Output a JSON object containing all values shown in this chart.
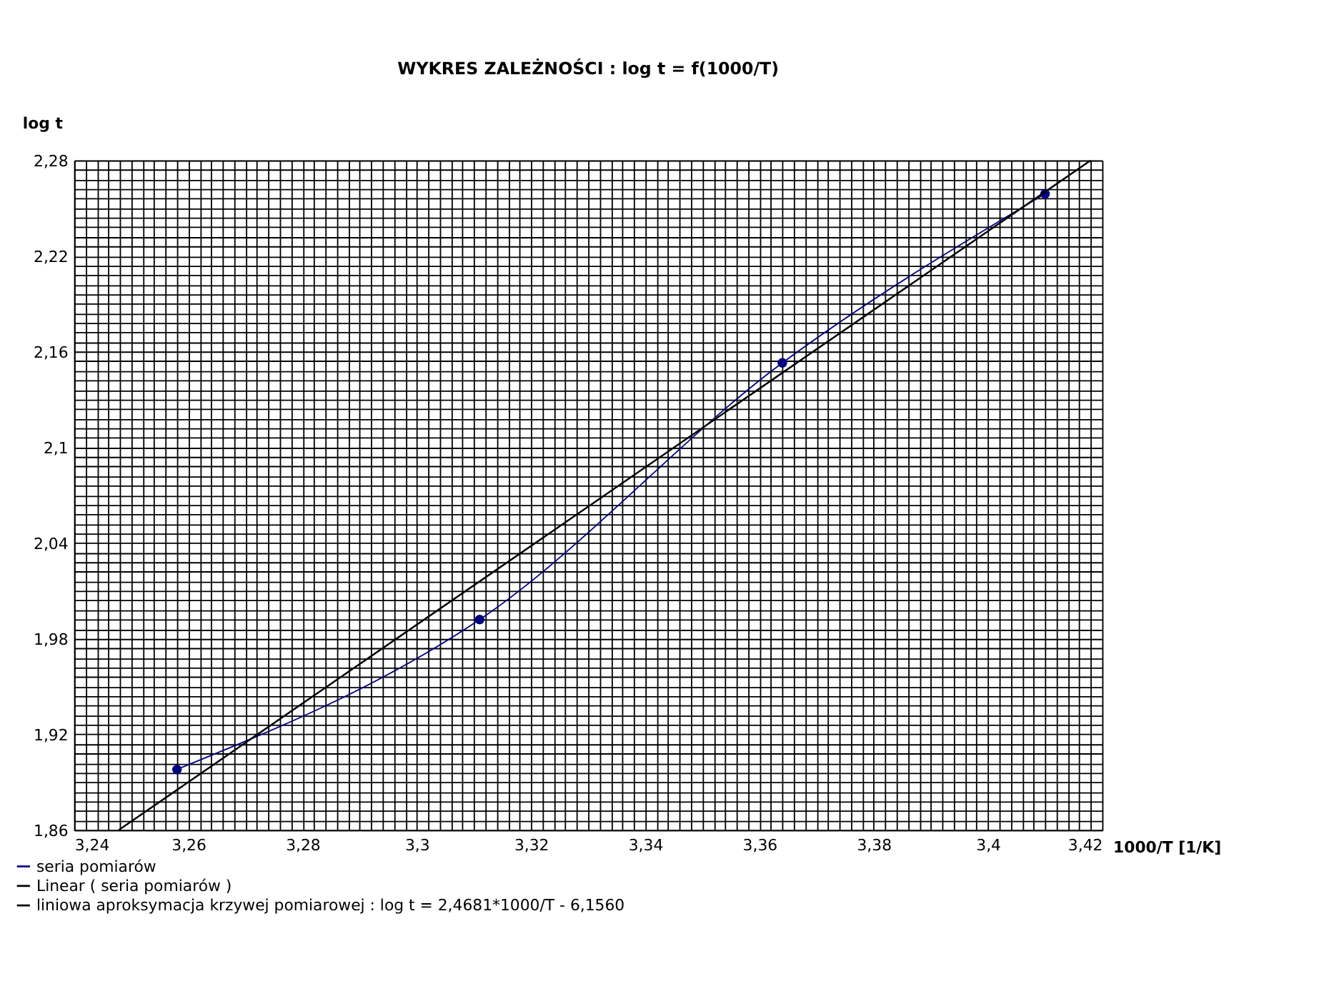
{
  "chart_data": {
    "type": "line",
    "title": "WYKRES ZALEŻNOŚCI :  log t = f(1000/T)",
    "xlabel": "1000/T [1/K]",
    "ylabel": "log t",
    "series": [
      {
        "name": "seria pomiarów",
        "color": "#000080",
        "marker": "circle",
        "line_style": "solid",
        "x": [
          3.258,
          3.311,
          3.364,
          3.41
        ],
        "values": [
          1.898,
          1.992,
          2.153,
          2.259
        ]
      },
      {
        "name": "Linear ( seria pomiarów    )",
        "color": "#000000",
        "marker": "none",
        "line_style": "solid",
        "x": [
          3.2478,
          3.418
        ],
        "values": [
          1.86,
          2.28
        ]
      },
      {
        "name": "liniowa aproksymacja krzywej pomiarowej :   log t = 2,4681*1000/T - 6,1560",
        "color": "#000000",
        "marker": "none",
        "line_style": "solid",
        "x": [
          3.2478,
          3.418
        ],
        "values": [
          1.86,
          2.28
        ]
      }
    ],
    "xlim": [
      3.24,
      3.42
    ],
    "ylim": [
      1.86,
      2.28
    ],
    "grid": true,
    "legend": "bottom left",
    "xticks": [
      {
        "value": 3.24,
        "label": "3,24"
      },
      {
        "value": 3.242,
        "label": null
      },
      {
        "value": 3.244,
        "label": null
      },
      {
        "value": 3.246,
        "label": null
      },
      {
        "value": 3.248,
        "label": null
      },
      {
        "value": 3.25,
        "label": null
      },
      {
        "value": 3.252,
        "label": null
      },
      {
        "value": 3.254,
        "label": null
      },
      {
        "value": 3.256,
        "label": null
      },
      {
        "value": 3.258,
        "label": null
      },
      {
        "value": 3.26,
        "label": "3,26"
      },
      {
        "value": 3.262,
        "label": null
      },
      {
        "value": 3.264,
        "label": null
      },
      {
        "value": 3.266,
        "label": null
      },
      {
        "value": 3.268,
        "label": null
      },
      {
        "value": 3.27,
        "label": null
      },
      {
        "value": 3.272,
        "label": null
      },
      {
        "value": 3.274,
        "label": null
      },
      {
        "value": 3.276,
        "label": null
      },
      {
        "value": 3.278,
        "label": null
      },
      {
        "value": 3.28,
        "label": "3,28"
      },
      {
        "value": 3.282,
        "label": null
      },
      {
        "value": 3.284,
        "label": null
      },
      {
        "value": 3.286,
        "label": null
      },
      {
        "value": 3.288,
        "label": null
      },
      {
        "value": 3.29,
        "label": null
      },
      {
        "value": 3.292,
        "label": null
      },
      {
        "value": 3.294,
        "label": null
      },
      {
        "value": 3.296,
        "label": null
      },
      {
        "value": 3.298,
        "label": null
      },
      {
        "value": 3.3,
        "label": "3,3"
      },
      {
        "value": 3.302,
        "label": null
      },
      {
        "value": 3.304,
        "label": null
      },
      {
        "value": 3.306,
        "label": null
      },
      {
        "value": 3.308,
        "label": null
      },
      {
        "value": 3.31,
        "label": null
      },
      {
        "value": 3.312,
        "label": null
      },
      {
        "value": 3.314,
        "label": null
      },
      {
        "value": 3.316,
        "label": null
      },
      {
        "value": 3.318,
        "label": null
      },
      {
        "value": 3.32,
        "label": "3,32"
      },
      {
        "value": 3.322,
        "label": null
      },
      {
        "value": 3.324,
        "label": null
      },
      {
        "value": 3.326,
        "label": null
      },
      {
        "value": 3.328,
        "label": null
      },
      {
        "value": 3.33,
        "label": null
      },
      {
        "value": 3.332,
        "label": null
      },
      {
        "value": 3.334,
        "label": null
      },
      {
        "value": 3.336,
        "label": null
      },
      {
        "value": 3.338,
        "label": null
      },
      {
        "value": 3.34,
        "label": "3,34"
      },
      {
        "value": 3.342,
        "label": null
      },
      {
        "value": 3.344,
        "label": null
      },
      {
        "value": 3.346,
        "label": null
      },
      {
        "value": 3.348,
        "label": null
      },
      {
        "value": 3.35,
        "label": null
      },
      {
        "value": 3.352,
        "label": null
      },
      {
        "value": 3.354,
        "label": null
      },
      {
        "value": 3.356,
        "label": null
      },
      {
        "value": 3.358,
        "label": null
      },
      {
        "value": 3.36,
        "label": "3,36"
      },
      {
        "value": 3.362,
        "label": null
      },
      {
        "value": 3.364,
        "label": null
      },
      {
        "value": 3.366,
        "label": null
      },
      {
        "value": 3.368,
        "label": null
      },
      {
        "value": 3.37,
        "label": null
      },
      {
        "value": 3.372,
        "label": null
      },
      {
        "value": 3.374,
        "label": null
      },
      {
        "value": 3.376,
        "label": null
      },
      {
        "value": 3.378,
        "label": null
      },
      {
        "value": 3.38,
        "label": "3,38"
      },
      {
        "value": 3.382,
        "label": null
      },
      {
        "value": 3.384,
        "label": null
      },
      {
        "value": 3.386,
        "label": null
      },
      {
        "value": 3.388,
        "label": null
      },
      {
        "value": 3.39,
        "label": null
      },
      {
        "value": 3.392,
        "label": null
      },
      {
        "value": 3.394,
        "label": null
      },
      {
        "value": 3.396,
        "label": null
      },
      {
        "value": 3.398,
        "label": null
      },
      {
        "value": 3.4,
        "label": "3,4"
      },
      {
        "value": 3.402,
        "label": null
      },
      {
        "value": 3.404,
        "label": null
      },
      {
        "value": 3.406,
        "label": null
      },
      {
        "value": 3.408,
        "label": null
      },
      {
        "value": 3.41,
        "label": null
      },
      {
        "value": 3.412,
        "label": null
      },
      {
        "value": 3.414,
        "label": null
      },
      {
        "value": 3.416,
        "label": null
      },
      {
        "value": 3.418,
        "label": null
      },
      {
        "value": 3.42,
        "label": "3,42"
      }
    ],
    "yticks": [
      {
        "value": 1.86,
        "label": "1,86"
      },
      {
        "value": 1.866,
        "label": null
      },
      {
        "value": 1.872,
        "label": null
      },
      {
        "value": 1.878,
        "label": null
      },
      {
        "value": 1.884,
        "label": null
      },
      {
        "value": 1.89,
        "label": null
      },
      {
        "value": 1.896,
        "label": null
      },
      {
        "value": 1.902,
        "label": null
      },
      {
        "value": 1.908,
        "label": null
      },
      {
        "value": 1.914,
        "label": null
      },
      {
        "value": 1.92,
        "label": "1,92"
      },
      {
        "value": 1.926,
        "label": null
      },
      {
        "value": 1.932,
        "label": null
      },
      {
        "value": 1.938,
        "label": null
      },
      {
        "value": 1.944,
        "label": null
      },
      {
        "value": 1.95,
        "label": null
      },
      {
        "value": 1.956,
        "label": null
      },
      {
        "value": 1.962,
        "label": null
      },
      {
        "value": 1.968,
        "label": null
      },
      {
        "value": 1.974,
        "label": null
      },
      {
        "value": 1.98,
        "label": "1,98"
      },
      {
        "value": 1.986,
        "label": null
      },
      {
        "value": 1.992,
        "label": null
      },
      {
        "value": 1.998,
        "label": null
      },
      {
        "value": 2.004,
        "label": null
      },
      {
        "value": 2.01,
        "label": null
      },
      {
        "value": 2.016,
        "label": null
      },
      {
        "value": 2.022,
        "label": null
      },
      {
        "value": 2.028,
        "label": null
      },
      {
        "value": 2.034,
        "label": null
      },
      {
        "value": 2.04,
        "label": "2,04"
      },
      {
        "value": 2.046,
        "label": null
      },
      {
        "value": 2.052,
        "label": null
      },
      {
        "value": 2.058,
        "label": null
      },
      {
        "value": 2.064,
        "label": null
      },
      {
        "value": 2.07,
        "label": null
      },
      {
        "value": 2.076,
        "label": null
      },
      {
        "value": 2.082,
        "label": null
      },
      {
        "value": 2.088,
        "label": null
      },
      {
        "value": 2.094,
        "label": null
      },
      {
        "value": 2.1,
        "label": "2,1"
      },
      {
        "value": 2.106,
        "label": null
      },
      {
        "value": 2.112,
        "label": null
      },
      {
        "value": 2.118,
        "label": null
      },
      {
        "value": 2.124,
        "label": null
      },
      {
        "value": 2.13,
        "label": null
      },
      {
        "value": 2.136,
        "label": null
      },
      {
        "value": 2.142,
        "label": null
      },
      {
        "value": 2.148,
        "label": null
      },
      {
        "value": 2.154,
        "label": null
      },
      {
        "value": 2.16,
        "label": "2,16"
      },
      {
        "value": 2.166,
        "label": null
      },
      {
        "value": 2.172,
        "label": null
      },
      {
        "value": 2.178,
        "label": null
      },
      {
        "value": 2.184,
        "label": null
      },
      {
        "value": 2.19,
        "label": null
      },
      {
        "value": 2.196,
        "label": null
      },
      {
        "value": 2.202,
        "label": null
      },
      {
        "value": 2.208,
        "label": null
      },
      {
        "value": 2.214,
        "label": null
      },
      {
        "value": 2.22,
        "label": "2,22"
      },
      {
        "value": 2.226,
        "label": null
      },
      {
        "value": 2.232,
        "label": null
      },
      {
        "value": 2.238,
        "label": null
      },
      {
        "value": 2.244,
        "label": null
      },
      {
        "value": 2.25,
        "label": null
      },
      {
        "value": 2.256,
        "label": null
      },
      {
        "value": 2.262,
        "label": null
      },
      {
        "value": 2.268,
        "label": null
      },
      {
        "value": 2.274,
        "label": null
      },
      {
        "value": 2.28,
        "label": "2,28"
      }
    ]
  }
}
